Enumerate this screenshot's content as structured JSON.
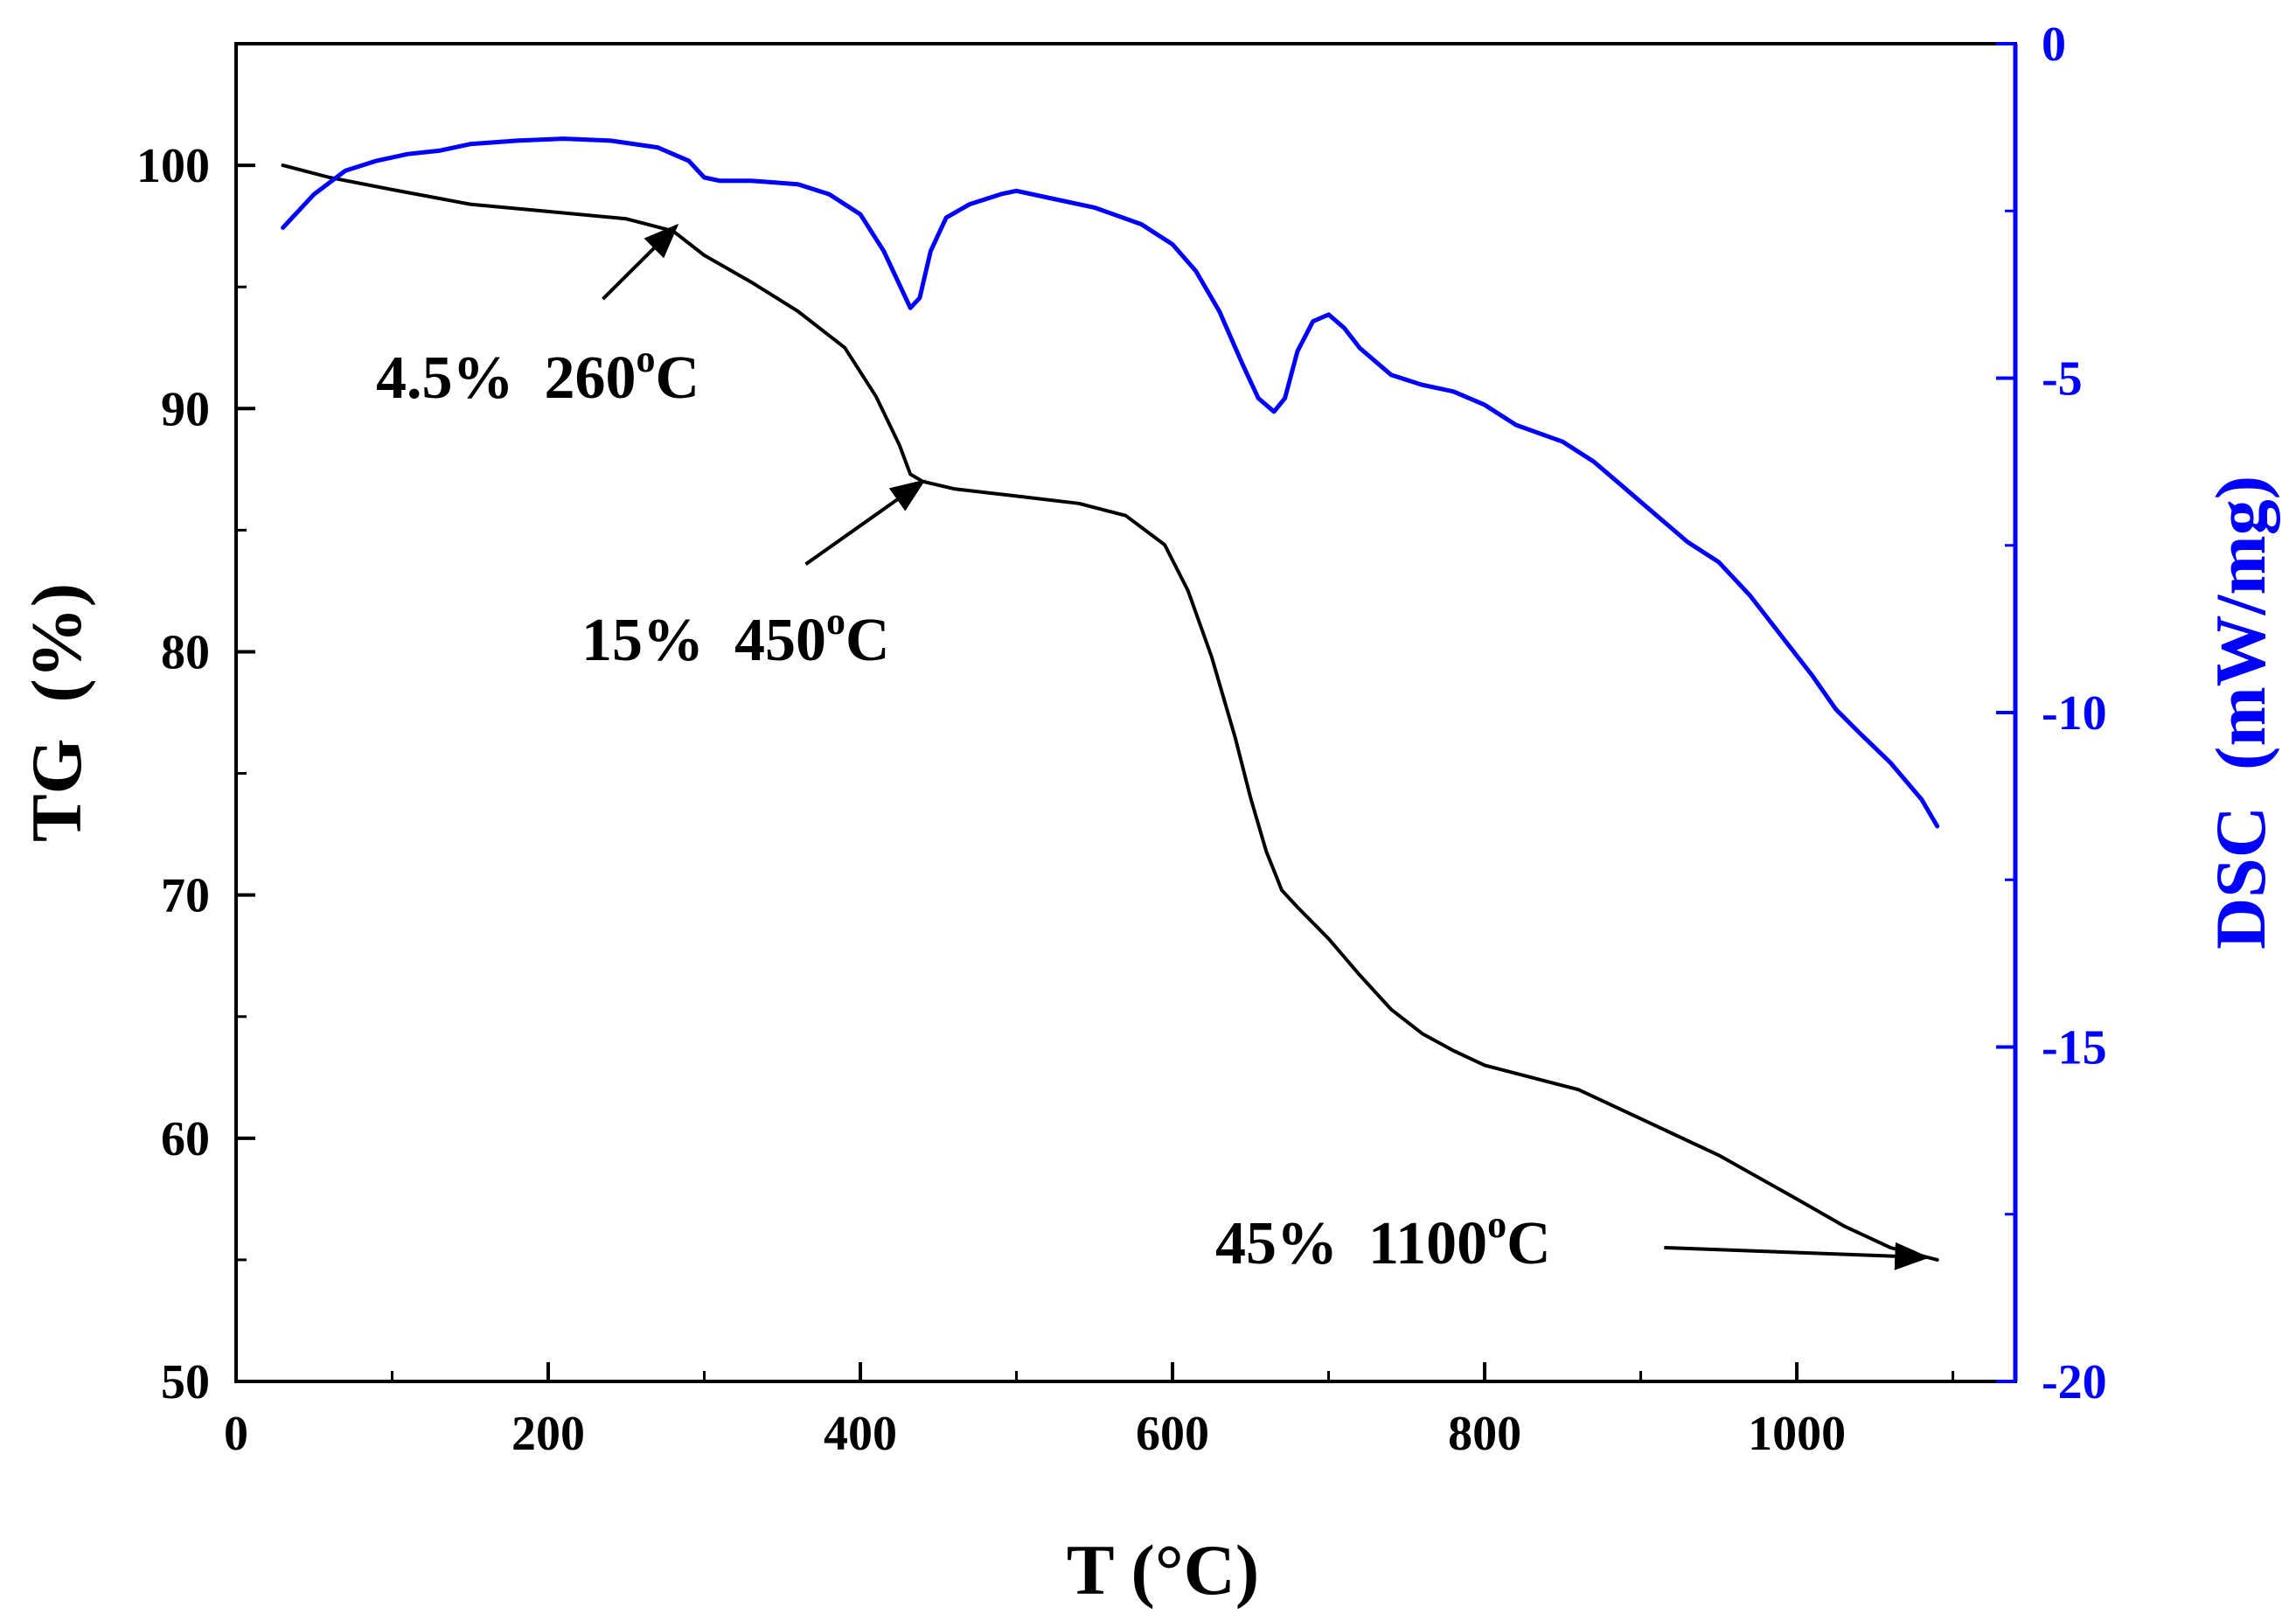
{
  "chart_data": {
    "type": "line",
    "title": "",
    "xlabel": "T (°C)",
    "ylabel_left": "TG  (%)",
    "ylabel_right": "DSC  (mW/mg)",
    "xlim": [
      0,
      1140
    ],
    "ylim_left": [
      50,
      105
    ],
    "ylim_right": [
      -20,
      0
    ],
    "x_ticks": [
      0,
      200,
      400,
      600,
      800,
      1000
    ],
    "y_left_ticks": [
      50,
      60,
      70,
      80,
      90,
      100
    ],
    "y_right_ticks": [
      0,
      -5,
      -10,
      -15,
      -20
    ],
    "x_tick_labels": [
      "0",
      "200",
      "400",
      "600",
      "800",
      "1000"
    ],
    "y_left_tick_labels": [
      "50",
      "60",
      "70",
      "80",
      "90",
      "100"
    ],
    "y_right_tick_labels": [
      "0",
      "-5",
      "-10",
      "-15",
      "-20"
    ],
    "grid": false,
    "colors": {
      "tg": "#000000",
      "dsc": "#0000ff"
    },
    "series": [
      {
        "name": "TG",
        "axis": "left",
        "color": "#000000",
        "x": [
          30,
          60,
          100,
          150,
          200,
          250,
          280,
          300,
          330,
          360,
          390,
          410,
          425,
          432,
          440,
          460,
          500,
          540,
          570,
          595,
          610,
          625,
          640,
          650,
          660,
          670,
          680,
          700,
          720,
          740,
          760,
          780,
          800,
          830,
          860,
          900,
          950,
          1000,
          1030,
          1060,
          1090
        ],
        "values": [
          100.0,
          99.5,
          99.0,
          98.4,
          98.1,
          97.8,
          97.3,
          96.3,
          95.2,
          94.0,
          92.5,
          90.5,
          88.5,
          87.3,
          87.0,
          86.7,
          86.4,
          86.1,
          85.6,
          84.4,
          82.5,
          79.8,
          76.5,
          74.0,
          71.8,
          70.2,
          69.5,
          68.2,
          66.7,
          65.3,
          64.3,
          63.6,
          63.0,
          62.5,
          62.0,
          60.8,
          59.3,
          57.5,
          56.4,
          55.5,
          55.0
        ]
      },
      {
        "name": "DSC",
        "axis": "right",
        "color": "#0000ff",
        "x": [
          30,
          50,
          70,
          90,
          110,
          130,
          150,
          180,
          210,
          240,
          270,
          290,
          300,
          310,
          330,
          360,
          380,
          400,
          415,
          425,
          432,
          438,
          445,
          455,
          470,
          490,
          500,
          520,
          550,
          580,
          600,
          615,
          630,
          645,
          655,
          665,
          672,
          680,
          690,
          700,
          710,
          720,
          740,
          760,
          780,
          800,
          820,
          850,
          870,
          890,
          910,
          930,
          950,
          970,
          990,
          1010,
          1025,
          1040,
          1060,
          1080,
          1090
        ],
        "values": [
          -2.75,
          -2.25,
          -1.9,
          -1.75,
          -1.65,
          -1.6,
          -1.5,
          -1.45,
          -1.42,
          -1.45,
          -1.55,
          -1.75,
          -2.0,
          -2.05,
          -2.05,
          -2.1,
          -2.25,
          -2.55,
          -3.1,
          -3.6,
          -3.95,
          -3.8,
          -3.1,
          -2.6,
          -2.4,
          -2.25,
          -2.2,
          -2.3,
          -2.45,
          -2.7,
          -3.0,
          -3.4,
          -4.0,
          -4.8,
          -5.3,
          -5.5,
          -5.3,
          -4.6,
          -4.15,
          -4.05,
          -4.25,
          -4.55,
          -4.95,
          -5.1,
          -5.2,
          -5.4,
          -5.7,
          -5.95,
          -6.25,
          -6.65,
          -7.05,
          -7.45,
          -7.75,
          -8.25,
          -8.85,
          -9.45,
          -9.95,
          -10.3,
          -10.75,
          -11.3,
          -11.7
        ]
      }
    ],
    "annotations": [
      {
        "label": "4.5%  260",
        "sup": "o",
        "unit": "C",
        "arrow_from": [
          235,
          94.5
        ],
        "arrow_to": [
          282,
          97.5
        ]
      },
      {
        "label": "15%  450",
        "sup": "o",
        "unit": "C",
        "arrow_from": [
          365,
          83.6
        ],
        "arrow_to": [
          440,
          87.0
        ]
      },
      {
        "label": "45%  1100",
        "sup": "o",
        "unit": "C",
        "arrow_from": [
          915,
          55.5
        ],
        "arrow_to": [
          1083,
          55.1
        ]
      }
    ]
  }
}
